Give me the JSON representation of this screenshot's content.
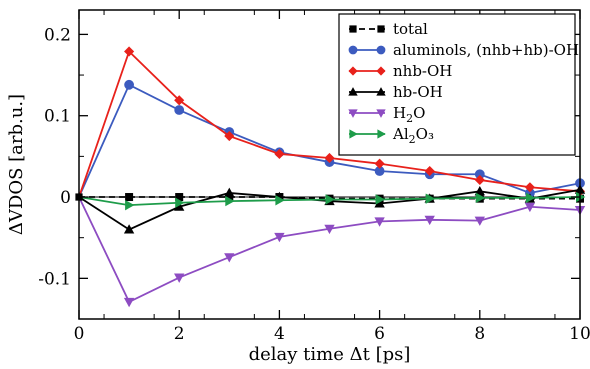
{
  "chart_data": {
    "type": "line",
    "xlabel": "delay time Δt [ps]",
    "ylabel": "ΔVDOS [arb.u.]",
    "xlim": [
      0,
      10
    ],
    "ylim": [
      -0.15,
      0.23
    ],
    "xticks": [
      0,
      2,
      4,
      6,
      8,
      10
    ],
    "yticks": [
      -0.1,
      0,
      0.1,
      0.2
    ],
    "xtick_labels": [
      "0",
      "2",
      "4",
      "6",
      "8",
      "10"
    ],
    "ytick_labels": [
      "-0.1",
      "0",
      "0.1",
      "0.2"
    ],
    "grid": false,
    "legend_position": "top-right",
    "zero_line": true,
    "x": [
      0,
      1,
      2,
      3,
      4,
      5,
      6,
      7,
      8,
      9,
      10
    ],
    "series": [
      {
        "name": "total",
        "label_main": "total",
        "label_sub": "",
        "label_tail": "",
        "color": "#000000",
        "marker": "square",
        "dashed": true,
        "values": [
          0,
          0,
          0,
          0,
          0,
          -0.002,
          -0.002,
          -0.002,
          -0.002,
          -0.002,
          -0.002
        ]
      },
      {
        "name": "aluminols, (nhb+hb)-OH",
        "label_main": "aluminols, (nhb+hb)-OH",
        "label_sub": "",
        "label_tail": "",
        "color": "#3c5bbf",
        "marker": "circle",
        "dashed": false,
        "values": [
          0,
          0.138,
          0.107,
          0.08,
          0.055,
          0.043,
          0.032,
          0.028,
          0.028,
          0.005,
          0.017
        ]
      },
      {
        "name": "nhb-OH",
        "label_main": "nhb-OH",
        "label_sub": "",
        "label_tail": "",
        "color": "#e8211b",
        "marker": "diamond",
        "dashed": false,
        "values": [
          0,
          0.179,
          0.119,
          0.075,
          0.053,
          0.048,
          0.041,
          0.032,
          0.021,
          0.012,
          0.007
        ]
      },
      {
        "name": "hb-OH",
        "label_main": "hb-OH",
        "label_sub": "",
        "label_tail": "",
        "color": "#000000",
        "marker": "triangle-up",
        "dashed": false,
        "values": [
          0,
          -0.04,
          -0.012,
          0.005,
          0.0,
          -0.005,
          -0.008,
          -0.002,
          0.007,
          -0.002,
          0.009
        ]
      },
      {
        "name": "H2O",
        "label_main": "H",
        "label_sub": "2",
        "label_tail": "O",
        "color": "#8d4cc2",
        "marker": "triangle-down",
        "dashed": false,
        "values": [
          0,
          -0.129,
          -0.099,
          -0.074,
          -0.049,
          -0.039,
          -0.03,
          -0.028,
          -0.029,
          -0.012,
          -0.016
        ]
      },
      {
        "name": "Al2O3",
        "label_main": "Al",
        "label_sub": "2",
        "label_tail": "O₃",
        "color": "#1e9c4a",
        "marker": "triangle-right",
        "dashed": false,
        "values": [
          0,
          -0.01,
          -0.007,
          -0.005,
          -0.004,
          -0.003,
          -0.003,
          -0.002,
          -0.001,
          -0.001,
          0.0
        ]
      }
    ]
  }
}
